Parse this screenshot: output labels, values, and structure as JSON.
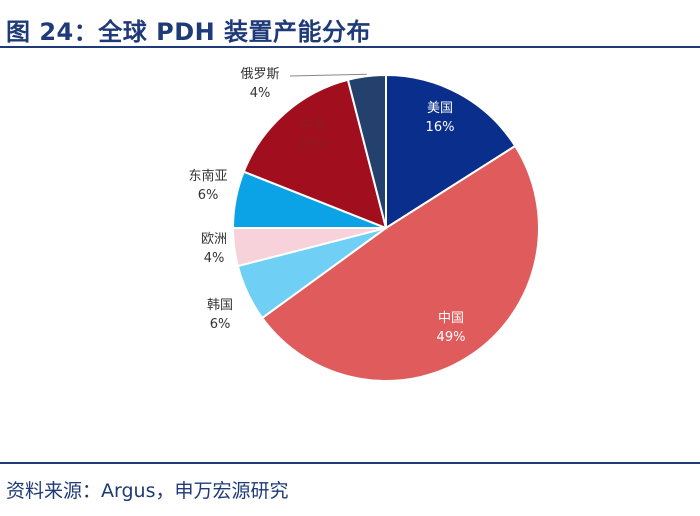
{
  "header": {
    "title": "图 24：全球 PDH 装置产能分布"
  },
  "footer": {
    "source": "资料来源：Argus，申万宏源研究"
  },
  "chart_data": {
    "type": "pie",
    "title": "图 24：全球 PDH 装置产能分布",
    "slices": [
      {
        "label": "美国",
        "percent_label": "16%",
        "value": 16,
        "color": "#0a2e8c",
        "label_color": "#ffffff",
        "label_placement": "inside"
      },
      {
        "label": "中国",
        "percent_label": "49%",
        "value": 49,
        "color": "#e05c5c",
        "label_color": "#ffffff",
        "label_placement": "inside"
      },
      {
        "label": "韩国",
        "percent_label": "6%",
        "value": 6,
        "color": "#6fcff5",
        "label_color": "#333333",
        "label_placement": "outside-left"
      },
      {
        "label": "欧洲",
        "percent_label": "4%",
        "value": 4,
        "color": "#f7d2da",
        "label_color": "#333333",
        "label_placement": "outside-left"
      },
      {
        "label": "东南亚",
        "percent_label": "6%",
        "value": 6,
        "color": "#0ba3e6",
        "label_color": "#333333",
        "label_placement": "outside-left"
      },
      {
        "label": "中东",
        "percent_label": "15%",
        "value": 15,
        "color": "#a10f1e",
        "label_color": "#8a1b24",
        "label_placement": "inside"
      },
      {
        "label": "俄罗斯",
        "percent_label": "4%",
        "value": 4,
        "color": "#24406c",
        "label_color": "#333333",
        "label_placement": "outside-top-leader"
      }
    ]
  }
}
